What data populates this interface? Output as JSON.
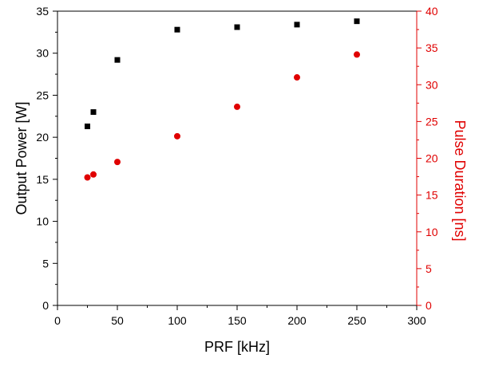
{
  "chart_data": {
    "type": "scatter",
    "xlabel": "PRF [kHz]",
    "ylabel": "Output Power [W]",
    "y2label": "Pulse Duration [ns]",
    "xlim": [
      0,
      300
    ],
    "ylim": [
      0,
      35
    ],
    "y2lim": [
      0,
      40
    ],
    "xticks": [
      0,
      50,
      100,
      150,
      200,
      250,
      300
    ],
    "yticks": [
      0,
      5,
      10,
      15,
      20,
      25,
      30,
      35
    ],
    "y2ticks": [
      0,
      5,
      10,
      15,
      20,
      25,
      30,
      35,
      40
    ],
    "grid": false,
    "series": [
      {
        "axis": "left",
        "color": "#000000",
        "marker": "square",
        "x": [
          25,
          30,
          50,
          100,
          150,
          200,
          250
        ],
        "y": [
          21.3,
          23.0,
          29.2,
          32.8,
          33.1,
          33.4,
          33.8
        ]
      },
      {
        "axis": "right",
        "color": "#e00000",
        "marker": "circle",
        "x": [
          25,
          30,
          50,
          100,
          150,
          200,
          250
        ],
        "y": [
          17.4,
          17.8,
          19.5,
          23.0,
          27.0,
          31.0,
          34.1
        ]
      }
    ]
  }
}
